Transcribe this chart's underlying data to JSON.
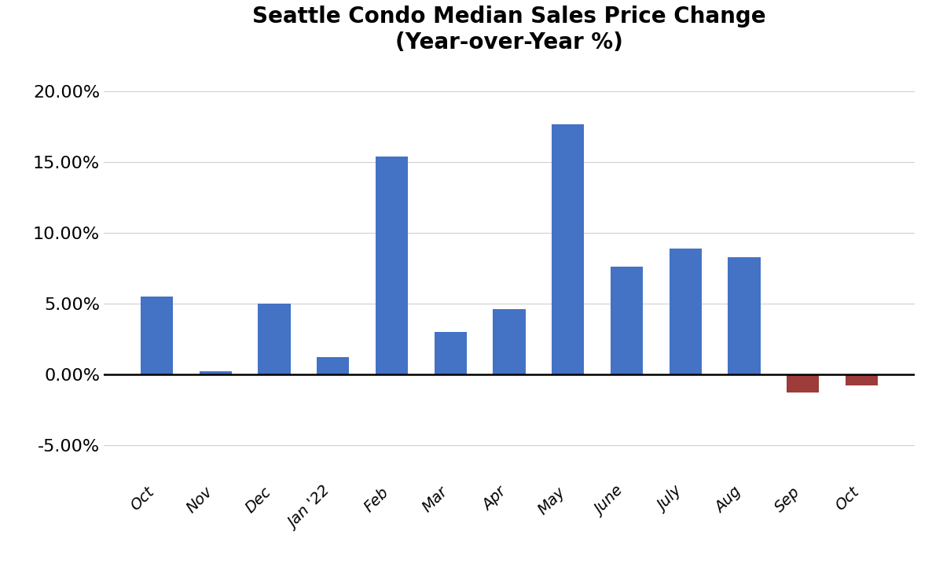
{
  "categories": [
    "Oct",
    "Nov",
    "Dec",
    "Jan '22",
    "Feb",
    "Mar",
    "Apr",
    "May",
    "June",
    "July",
    "Aug",
    "Sep",
    "Oct"
  ],
  "values": [
    0.055,
    0.002,
    0.05,
    0.012,
    0.154,
    0.03,
    0.046,
    0.177,
    0.076,
    0.089,
    0.083,
    -0.013,
    -0.008
  ],
  "positive_color": "#4472C4",
  "negative_color": "#9E3B3B",
  "title_line1": "Seattle Condo Median Sales Price Change",
  "title_line2": "(Year-over-Year %)",
  "ylim": [
    -0.075,
    0.215
  ],
  "yticks": [
    -0.05,
    0.0,
    0.05,
    0.1,
    0.15,
    0.2
  ],
  "background_color": "#ffffff",
  "grid_color": "#d0d0d0",
  "title_fontsize": 20,
  "ytick_fontsize": 16,
  "xtick_fontsize": 14,
  "xtick_rotation": 45,
  "bar_width": 0.55
}
